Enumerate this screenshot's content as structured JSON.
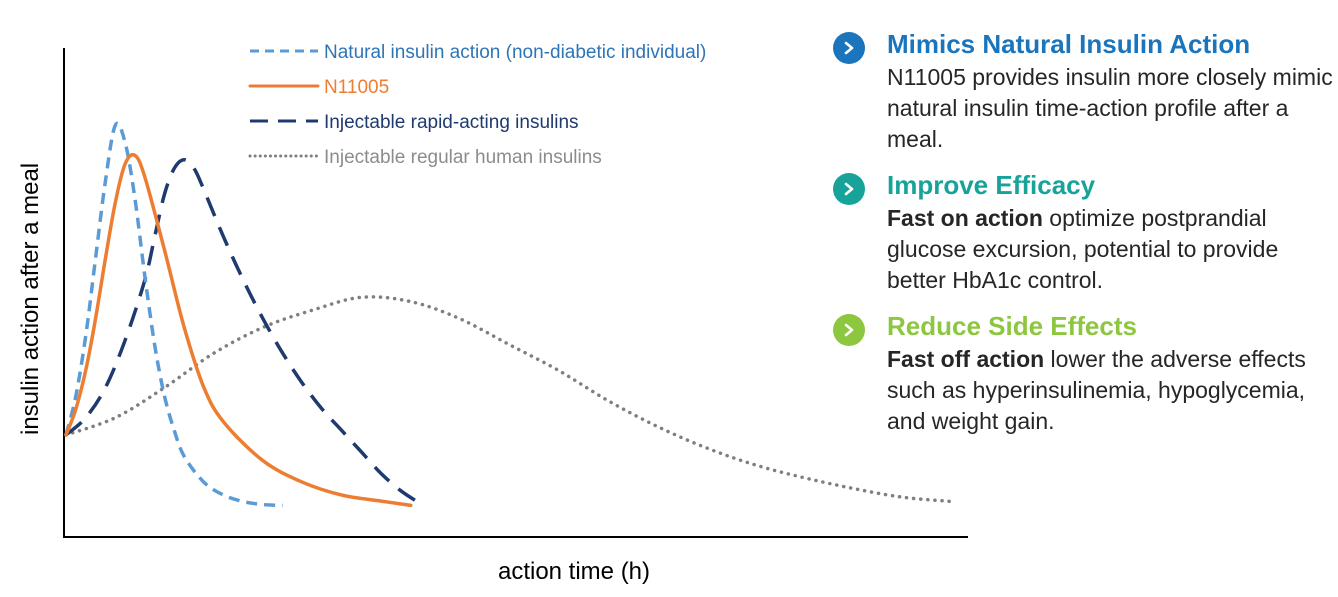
{
  "chart_data": {
    "type": "line",
    "xlabel": "action time (h)",
    "ylabel": "insulin action after a meal",
    "grid": false,
    "legend_position": "top",
    "series": [
      {
        "name": "Natural insulin action (non-diabetic individual)",
        "style": "short-dash",
        "color": "#5b9bd5",
        "points": [
          [
            0,
            17
          ],
          [
            1,
            26
          ],
          [
            2,
            40
          ],
          [
            3,
            58
          ],
          [
            4,
            76
          ],
          [
            5,
            89
          ],
          [
            6,
            85
          ],
          [
            7,
            72
          ],
          [
            8,
            54
          ],
          [
            9,
            38
          ],
          [
            10,
            26
          ],
          [
            11,
            18
          ],
          [
            12,
            12
          ],
          [
            14,
            6
          ],
          [
            16,
            3
          ],
          [
            18,
            1.5
          ],
          [
            20,
            0.8
          ],
          [
            22,
            0.6
          ]
        ]
      },
      {
        "name": "N11005",
        "style": "solid",
        "color": "#ed7d31",
        "points": [
          [
            0,
            17
          ],
          [
            1,
            23
          ],
          [
            2,
            32
          ],
          [
            3,
            44
          ],
          [
            4,
            58
          ],
          [
            5,
            71
          ],
          [
            6,
            80
          ],
          [
            7,
            82
          ],
          [
            8,
            77
          ],
          [
            10,
            60
          ],
          [
            12,
            42
          ],
          [
            14,
            28
          ],
          [
            16,
            20
          ],
          [
            20,
            11
          ],
          [
            24,
            6
          ],
          [
            28,
            3
          ],
          [
            32,
            1.6
          ],
          [
            35,
            0.6
          ]
        ]
      },
      {
        "name": "Injectable rapid-acting insulins",
        "style": "long-dash",
        "color": "#1f3a6e",
        "points": [
          [
            0,
            17
          ],
          [
            2,
            21
          ],
          [
            4,
            28
          ],
          [
            6,
            39
          ],
          [
            8,
            53
          ],
          [
            9,
            63
          ],
          [
            10,
            73
          ],
          [
            11,
            79
          ],
          [
            12,
            81
          ],
          [
            13,
            79
          ],
          [
            14,
            74
          ],
          [
            16,
            63
          ],
          [
            18,
            53
          ],
          [
            20,
            44
          ],
          [
            22,
            36
          ],
          [
            24,
            29
          ],
          [
            26,
            23
          ],
          [
            28,
            18
          ],
          [
            30,
            13
          ],
          [
            32,
            8
          ],
          [
            34,
            4
          ],
          [
            36,
            1
          ]
        ]
      },
      {
        "name": "Injectable regular human insulins",
        "style": "dotted",
        "color": "#7f7f7f",
        "points": [
          [
            0,
            17
          ],
          [
            5,
            21
          ],
          [
            10,
            28
          ],
          [
            15,
            36
          ],
          [
            20,
            42
          ],
          [
            25,
            46
          ],
          [
            30,
            49
          ],
          [
            35,
            48
          ],
          [
            40,
            44
          ],
          [
            45,
            38
          ],
          [
            50,
            32
          ],
          [
            55,
            25
          ],
          [
            60,
            19
          ],
          [
            65,
            14
          ],
          [
            70,
            10
          ],
          [
            75,
            7
          ],
          [
            80,
            4.5
          ],
          [
            85,
            2.5
          ],
          [
            90,
            1.5
          ]
        ]
      }
    ]
  },
  "legend": [
    {
      "label": "Natural insulin action (non-diabetic individual)",
      "color": "#2e75b6"
    },
    {
      "label": "N11005",
      "color": "#ed7d31"
    },
    {
      "label": "Injectable rapid-acting insulins",
      "color": "#1f3a6e"
    },
    {
      "label": "Injectable regular human insulins",
      "color": "#8c8c8c"
    }
  ],
  "points": [
    {
      "heading": "Mimics Natural Insulin Action",
      "color": "#1b75bc",
      "bold": "",
      "text": "N11005 provides insulin more closely mimic natural insulin time-action profile after a meal."
    },
    {
      "heading": "Improve Efficacy",
      "color": "#17a39a",
      "bold": "Fast on action",
      "text": " optimize postprandial glucose excursion, potential to provide better HbA1c control."
    },
    {
      "heading": "Reduce Side Effects",
      "color": "#8dc63f",
      "bold": "Fast off action",
      "text": " lower the adverse effects such as hyperinsulinemia, hypoglycemia, and weight gain."
    }
  ]
}
